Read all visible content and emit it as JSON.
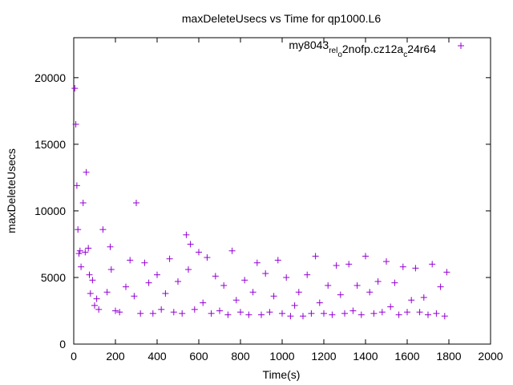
{
  "chart_data": {
    "type": "scatter",
    "title": "maxDeleteUsecs vs Time for qp1000.L6",
    "xlabel": "Time(s)",
    "ylabel": "maxDeleteUsecs",
    "xlim": [
      0,
      2000
    ],
    "ylim": [
      0,
      23000
    ],
    "xticks": [
      0,
      200,
      400,
      600,
      800,
      1000,
      1200,
      1400,
      1600,
      1800,
      2000
    ],
    "yticks": [
      0,
      5000,
      10000,
      15000,
      20000
    ],
    "grid": false,
    "legend_position": "top-right",
    "marker": "+",
    "color": "#9400d3",
    "series": [
      {
        "name": "my8043_rel_o2nofp.cz12a_c24r64",
        "name_parts": {
          "base": "my8043",
          "sub1": "rel",
          "mid1": "",
          "sub2": "o",
          "mid2": "2nofp.cz12a",
          "sub3": "c",
          "end": "24r64"
        },
        "x": [
          5,
          10,
          15,
          20,
          25,
          30,
          35,
          45,
          55,
          60,
          70,
          75,
          80,
          90,
          100,
          110,
          120,
          140,
          160,
          175,
          180,
          200,
          220,
          250,
          270,
          290,
          300,
          320,
          340,
          360,
          380,
          400,
          420,
          440,
          460,
          480,
          500,
          520,
          540,
          550,
          560,
          580,
          600,
          620,
          640,
          660,
          680,
          700,
          720,
          740,
          760,
          780,
          800,
          820,
          840,
          860,
          880,
          900,
          920,
          940,
          960,
          980,
          1000,
          1020,
          1040,
          1060,
          1080,
          1100,
          1120,
          1140,
          1160,
          1180,
          1200,
          1220,
          1240,
          1260,
          1280,
          1300,
          1320,
          1340,
          1360,
          1380,
          1400,
          1420,
          1440,
          1460,
          1480,
          1500,
          1520,
          1540,
          1560,
          1580,
          1600,
          1620,
          1640,
          1660,
          1680,
          1700,
          1720,
          1740,
          1760,
          1780,
          1790
        ],
        "y": [
          19200,
          16500,
          11900,
          8600,
          6800,
          7000,
          5800,
          10600,
          6900,
          12900,
          7200,
          5200,
          3800,
          4800,
          2900,
          3400,
          2600,
          8600,
          3900,
          7300,
          5600,
          2500,
          2400,
          4300,
          6300,
          3600,
          10600,
          2300,
          6100,
          4600,
          2300,
          5200,
          2600,
          3800,
          6400,
          2400,
          4700,
          2300,
          8200,
          5600,
          7500,
          2600,
          6900,
          3100,
          6500,
          2300,
          5100,
          2500,
          4400,
          2200,
          7000,
          3300,
          2400,
          4800,
          2200,
          3900,
          6100,
          2200,
          5300,
          2400,
          3600,
          6300,
          2300,
          5000,
          2100,
          2900,
          3900,
          2100,
          5200,
          2300,
          6600,
          3100,
          2300,
          4400,
          2200,
          5900,
          3700,
          2300,
          6000,
          2500,
          4400,
          2200,
          6600,
          3900,
          2300,
          4700,
          2400,
          6200,
          2800,
          4600,
          2200,
          5800,
          2400,
          3300,
          5700,
          2400,
          3500,
          2200,
          6000,
          2300,
          4300,
          2100,
          5400
        ]
      }
    ]
  }
}
